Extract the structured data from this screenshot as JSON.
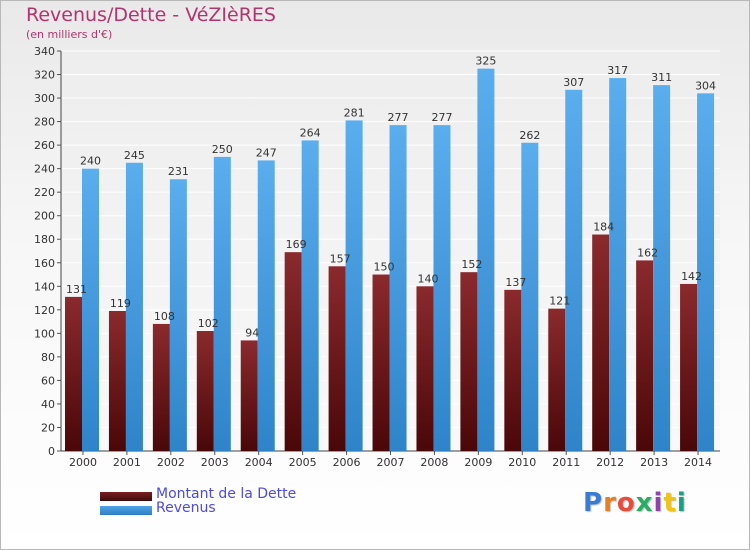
{
  "title": "Revenus/Dette - VéZIèRES",
  "subtitle": "(en milliers d'€)",
  "logo": {
    "text": "Proxiti",
    "letter_colors": [
      "#3a7bd5",
      "#e67e22",
      "#e74c3c",
      "#27ae60",
      "#8e44ad",
      "#f1c40f",
      "#16a085"
    ]
  },
  "legend": [
    {
      "name": "Montant de la Dette",
      "color": "#7a1f22"
    },
    {
      "name": "Revenus",
      "color": "#4fa3e6"
    }
  ],
  "chart_data": {
    "type": "bar",
    "title": "Revenus/Dette - VéZIèRES",
    "subtitle": "(en milliers d'€)",
    "xlabel": "",
    "ylabel": "",
    "ylim": [
      0,
      340
    ],
    "ytick_step": 20,
    "grid": true,
    "legend_position": "bottom-left",
    "categories": [
      "2000",
      "2001",
      "2002",
      "2003",
      "2004",
      "2005",
      "2006",
      "2007",
      "2008",
      "2009",
      "2010",
      "2011",
      "2012",
      "2013",
      "2014"
    ],
    "series": [
      {
        "name": "Montant de la Dette",
        "color": "#7a1f22",
        "values": [
          131,
          119,
          108,
          102,
          94,
          169,
          157,
          150,
          140,
          152,
          137,
          121,
          184,
          162,
          142
        ],
        "labels": [
          "131",
          "119",
          "108",
          "102",
          "94",
          "169",
          "157",
          "150",
          "140",
          "152",
          "137",
          "121",
          "184",
          "162",
          "142"
        ]
      },
      {
        "name": "Revenus",
        "color": "#4fa3e6",
        "values": [
          240,
          245,
          231,
          250,
          247,
          264,
          281,
          277,
          277,
          325,
          262,
          307,
          317,
          311,
          304
        ],
        "labels": [
          "240",
          "245",
          "231",
          "250",
          "247",
          "264",
          "281",
          "277",
          "277",
          "325",
          "262",
          "307",
          "317",
          "311",
          "304"
        ]
      }
    ]
  }
}
